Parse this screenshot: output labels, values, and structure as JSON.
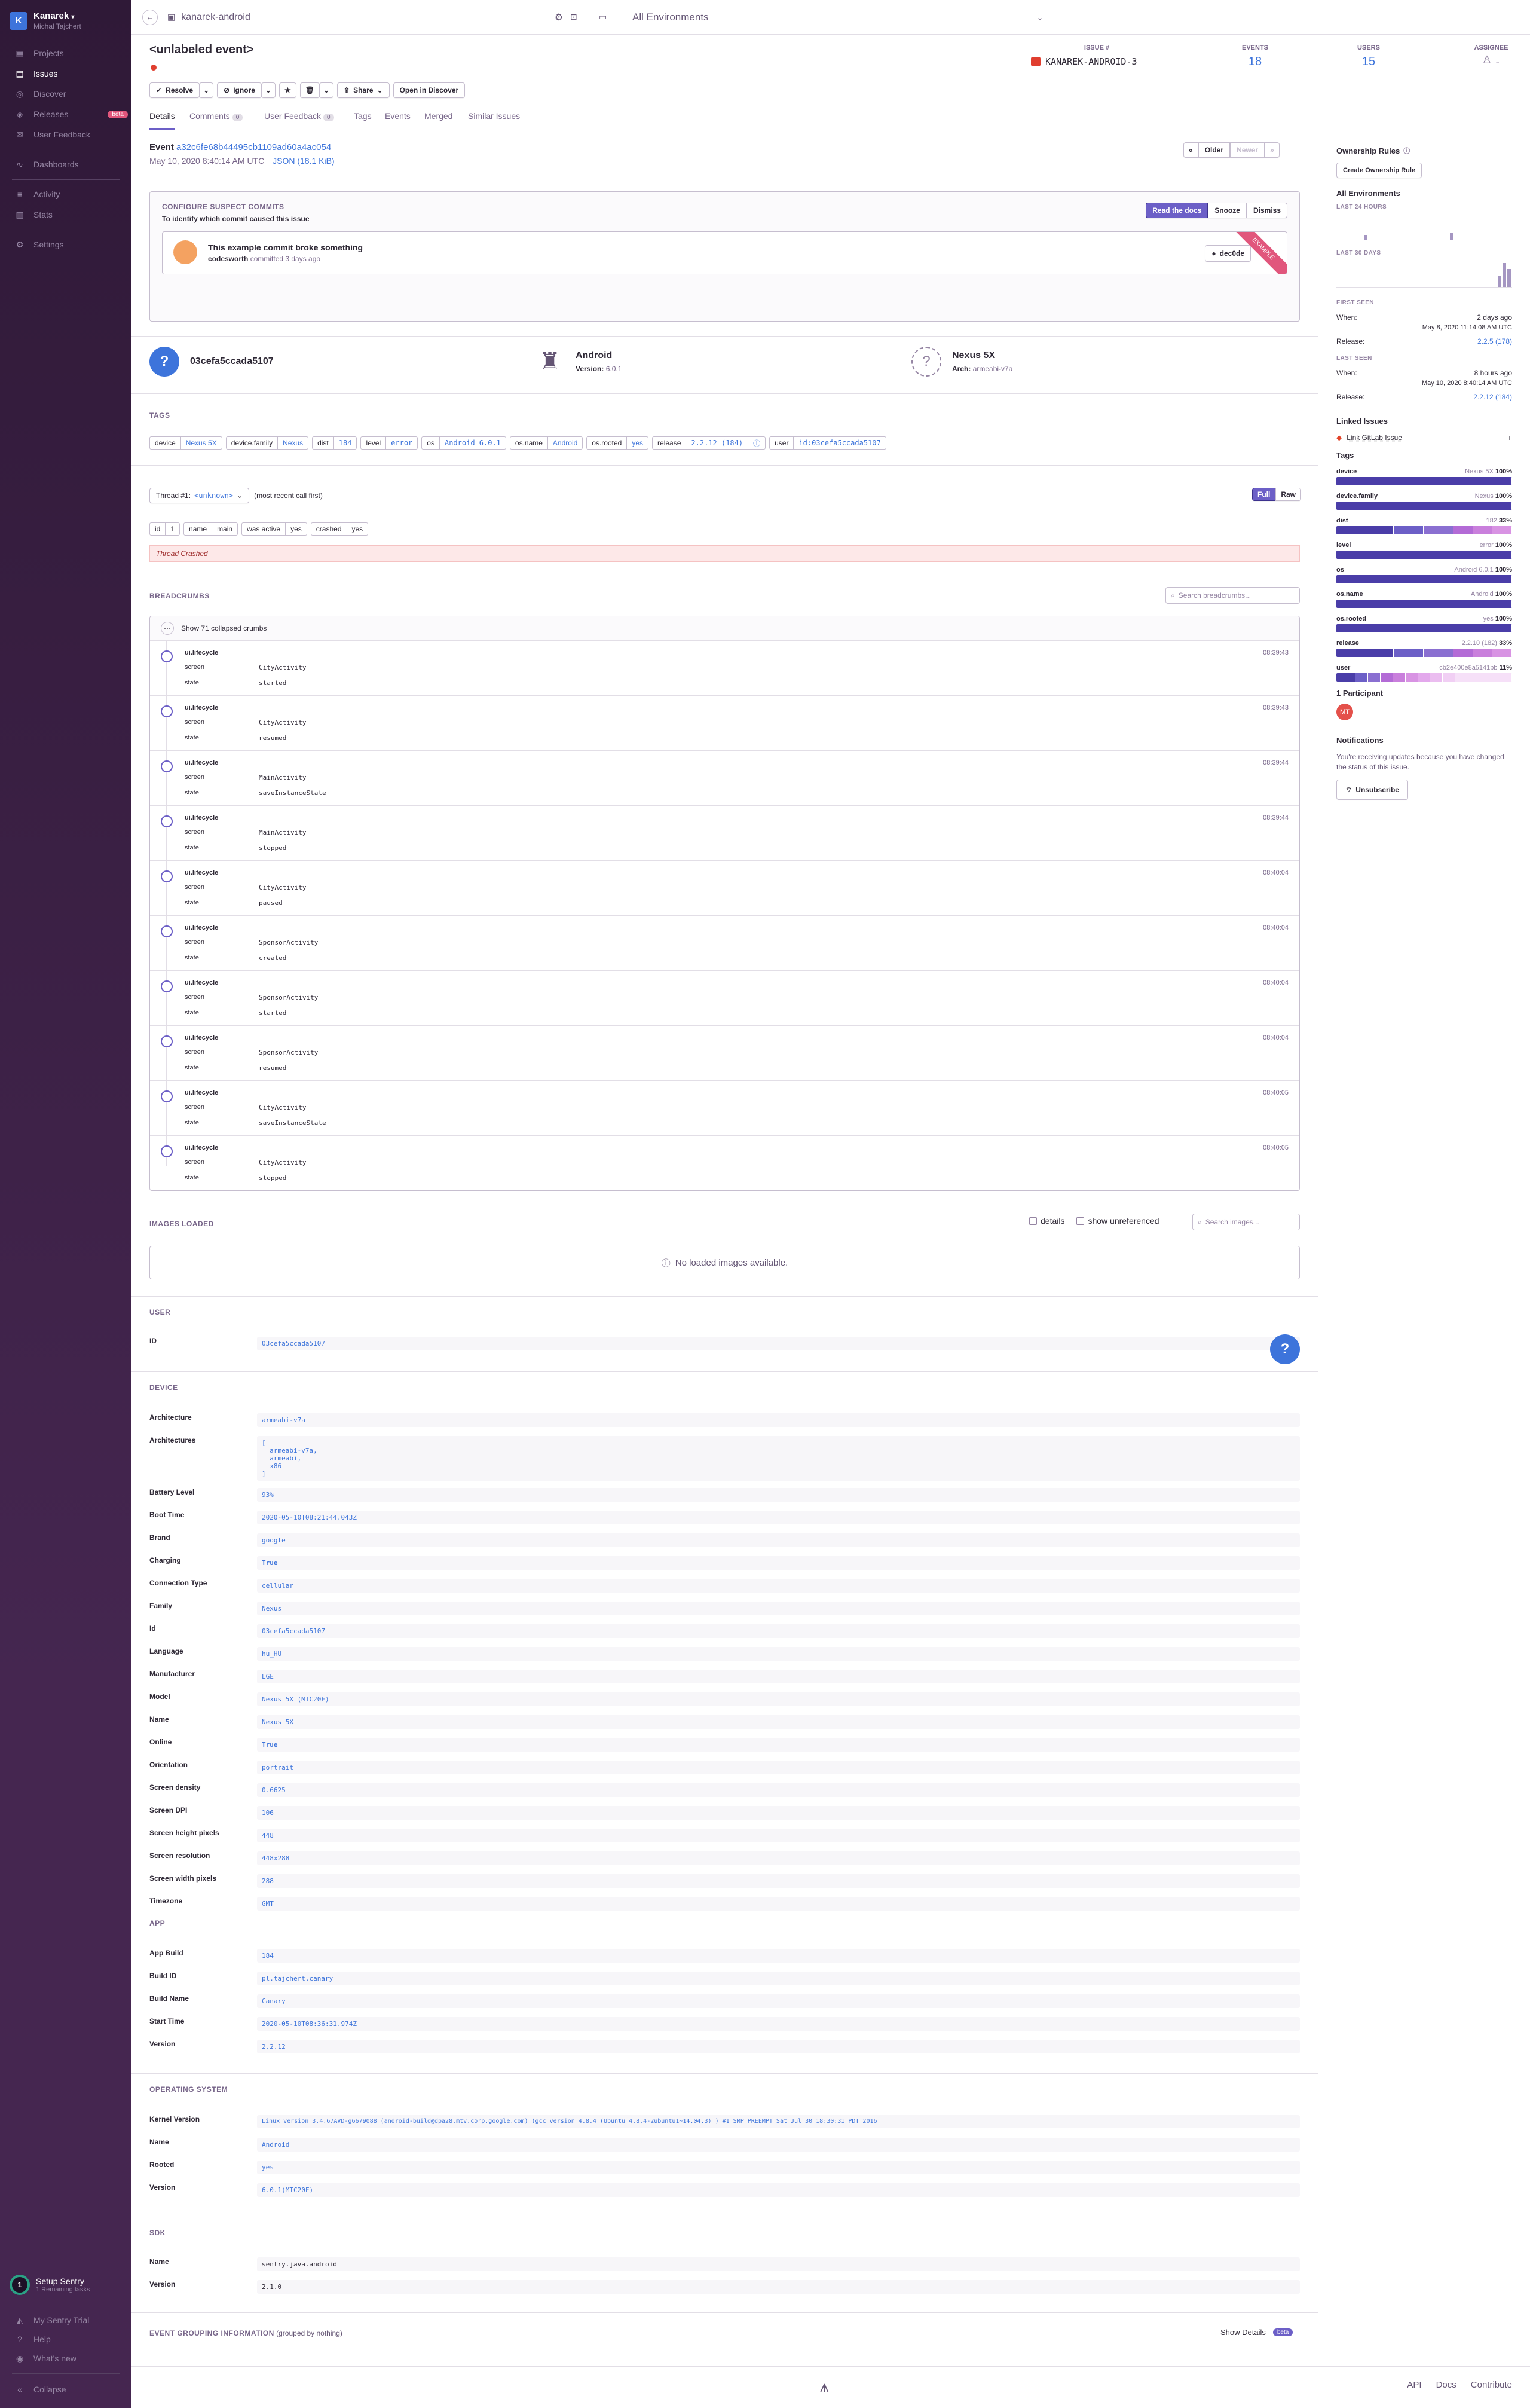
{
  "sidebar": {
    "org_initial": "K",
    "org_name": "Kanarek",
    "user_name": "Michal Tajchert",
    "items": [
      {
        "label": "Projects"
      },
      {
        "label": "Issues"
      },
      {
        "label": "Discover"
      },
      {
        "label": "Releases",
        "badge": "beta"
      },
      {
        "label": "User Feedback"
      },
      {
        "label": "Dashboards"
      },
      {
        "label": "Activity"
      },
      {
        "label": "Stats"
      },
      {
        "label": "Settings"
      }
    ],
    "setup_title": "Setup Sentry",
    "setup_sub": "1 Remaining tasks",
    "bottom": [
      {
        "label": "My Sentry Trial"
      },
      {
        "label": "Help"
      },
      {
        "label": "What's new"
      },
      {
        "label": "Collapse"
      }
    ]
  },
  "topbar": {
    "project": "kanarek-android",
    "environment": "All Environments"
  },
  "issue": {
    "title": "<unlabeled event>",
    "id_label": "ISSUE #",
    "id": "KANAREK-ANDROID-3",
    "events_label": "EVENTS",
    "events": "18",
    "users_label": "USERS",
    "users": "15",
    "assignee_label": "ASSIGNEE"
  },
  "actions": {
    "resolve": "Resolve",
    "ignore": "Ignore",
    "share": "Share",
    "open_discover": "Open in Discover"
  },
  "tabs": [
    {
      "label": "Details"
    },
    {
      "label": "Comments",
      "count": "0"
    },
    {
      "label": "User Feedback",
      "count": "0"
    },
    {
      "label": "Tags"
    },
    {
      "label": "Events"
    },
    {
      "label": "Merged"
    },
    {
      "label": "Similar Issues"
    }
  ],
  "event": {
    "label": "Event",
    "id": "a32c6fe68b44495cb1109ad60a4ac054",
    "date": "May 10, 2020 8:40:14 AM UTC",
    "json": "JSON (18.1 KiB)",
    "older": "Older",
    "newer": "Newer"
  },
  "suspect": {
    "title": "CONFIGURE SUSPECT COMMITS",
    "subtitle": "To identify which commit caused this issue",
    "read_docs": "Read the docs",
    "snooze": "Snooze",
    "dismiss": "Dismiss",
    "commit_title": "This example commit broke something",
    "commit_author": "codesworth",
    "commit_meta": "committed 3 days ago",
    "commit_hash": "dec0de",
    "ribbon": "example"
  },
  "contexts": [
    {
      "title": "03cefa5ccada5107",
      "sub_label": "",
      "sub_value": ""
    },
    {
      "title": "Android",
      "sub_label": "Version:",
      "sub_value": "6.0.1"
    },
    {
      "title": "Nexus 5X",
      "sub_label": "Arch:",
      "sub_value": "armeabi-v7a"
    }
  ],
  "tags_section": {
    "title": "TAGS",
    "items": [
      {
        "k": "device",
        "v": "Nexus 5X"
      },
      {
        "k": "device.family",
        "v": "Nexus"
      },
      {
        "k": "dist",
        "v": "184"
      },
      {
        "k": "level",
        "v": "error"
      },
      {
        "k": "os",
        "v": "Android 6.0.1"
      },
      {
        "k": "os.name",
        "v": "Android"
      },
      {
        "k": "os.rooted",
        "v": "yes"
      },
      {
        "k": "release",
        "v": "2.2.12 (184)"
      },
      {
        "k": "user",
        "v": "id:03cefa5ccada5107"
      }
    ]
  },
  "thread": {
    "selector": "Thread #1:",
    "selector_value": "<unknown>",
    "order": "(most recent call first)",
    "full": "Full",
    "raw": "Raw",
    "pills": [
      {
        "k": "id",
        "v": "1"
      },
      {
        "k": "name",
        "v": "main"
      },
      {
        "k": "was active",
        "v": "yes"
      },
      {
        "k": "crashed",
        "v": "yes"
      }
    ],
    "crashed_banner": "Thread Crashed"
  },
  "breadcrumbs": {
    "title": "BREADCRUMBS",
    "search_placeholder": "Search breadcrumbs...",
    "collapsed": "Show 71 collapsed crumbs",
    "items": [
      {
        "cat": "ui.lifecycle",
        "time": "08:39:43",
        "screen": "CityActivity",
        "state": "started"
      },
      {
        "cat": "ui.lifecycle",
        "time": "08:39:43",
        "screen": "CityActivity",
        "state": "resumed"
      },
      {
        "cat": "ui.lifecycle",
        "time": "08:39:44",
        "screen": "MainActivity",
        "state": "saveInstanceState"
      },
      {
        "cat": "ui.lifecycle",
        "time": "08:39:44",
        "screen": "MainActivity",
        "state": "stopped"
      },
      {
        "cat": "ui.lifecycle",
        "time": "08:40:04",
        "screen": "CityActivity",
        "state": "paused"
      },
      {
        "cat": "ui.lifecycle",
        "time": "08:40:04",
        "screen": "SponsorActivity",
        "state": "created"
      },
      {
        "cat": "ui.lifecycle",
        "time": "08:40:04",
        "screen": "SponsorActivity",
        "state": "started"
      },
      {
        "cat": "ui.lifecycle",
        "time": "08:40:04",
        "screen": "SponsorActivity",
        "state": "resumed"
      },
      {
        "cat": "ui.lifecycle",
        "time": "08:40:05",
        "screen": "CityActivity",
        "state": "saveInstanceState"
      },
      {
        "cat": "ui.lifecycle",
        "time": "08:40:05",
        "screen": "CityActivity",
        "state": "stopped"
      }
    ],
    "key_screen": "screen",
    "key_state": "state"
  },
  "images": {
    "title": "IMAGES LOADED",
    "details": "details",
    "show_unref": "show unreferenced",
    "search_placeholder": "Search images...",
    "empty": "No loaded images available."
  },
  "user_section": {
    "title": "USER",
    "rows": [
      {
        "k": "ID",
        "v": "03cefa5ccada5107"
      }
    ]
  },
  "device_section": {
    "title": "DEVICE",
    "rows": [
      {
        "k": "Architecture",
        "v": "armeabi-v7a"
      },
      {
        "k": "Architectures",
        "v": "[\n  armeabi-v7a,\n  armeabi,\n  x86\n]"
      },
      {
        "k": "Battery Level",
        "v": "93%"
      },
      {
        "k": "Boot Time",
        "v": "2020-05-10T08:21:44.043Z"
      },
      {
        "k": "Brand",
        "v": "google"
      },
      {
        "k": "Charging",
        "v": "True"
      },
      {
        "k": "Connection Type",
        "v": "cellular"
      },
      {
        "k": "Family",
        "v": "Nexus"
      },
      {
        "k": "Id",
        "v": "03cefa5ccada5107"
      },
      {
        "k": "Language",
        "v": "hu_HU"
      },
      {
        "k": "Manufacturer",
        "v": "LGE"
      },
      {
        "k": "Model",
        "v": "Nexus 5X (MTC20F)"
      },
      {
        "k": "Name",
        "v": "Nexus 5X"
      },
      {
        "k": "Online",
        "v": "True"
      },
      {
        "k": "Orientation",
        "v": "portrait"
      },
      {
        "k": "Screen density",
        "v": "0.6625"
      },
      {
        "k": "Screen DPI",
        "v": "106"
      },
      {
        "k": "Screen height pixels",
        "v": "448"
      },
      {
        "k": "Screen resolution",
        "v": "448x288"
      },
      {
        "k": "Screen width pixels",
        "v": "288"
      },
      {
        "k": "Timezone",
        "v": "GMT"
      }
    ]
  },
  "app_section": {
    "title": "APP",
    "rows": [
      {
        "k": "App Build",
        "v": "184"
      },
      {
        "k": "Build ID",
        "v": "pl.tajchert.canary"
      },
      {
        "k": "Build Name",
        "v": "Canary"
      },
      {
        "k": "Start Time",
        "v": "2020-05-10T08:36:31.974Z"
      },
      {
        "k": "Version",
        "v": "2.2.12"
      }
    ]
  },
  "os_section": {
    "title": "OPERATING SYSTEM",
    "rows": [
      {
        "k": "Kernel Version",
        "v": "Linux version 3.4.67AVD-g6679088 (android-build@dpa28.mtv.corp.google.com) (gcc version 4.8.4 (Ubuntu 4.8.4-2ubuntu1~14.04.3) ) #1 SMP PREEMPT Sat Jul 30 18:30:31 PDT 2016"
      },
      {
        "k": "Name",
        "v": "Android"
      },
      {
        "k": "Rooted",
        "v": "yes"
      },
      {
        "k": "Version",
        "v": "6.0.1(MTC20F)"
      }
    ]
  },
  "sdk_section": {
    "title": "SDK",
    "rows": [
      {
        "k": "Name",
        "v": "sentry.java.android"
      },
      {
        "k": "Version",
        "v": "2.1.0"
      }
    ]
  },
  "grouping": {
    "title": "EVENT GROUPING INFORMATION",
    "sub": "(grouped by nothing)",
    "show_details": "Show Details",
    "beta": "beta"
  },
  "footer": {
    "api": "API",
    "docs": "Docs",
    "contribute": "Contribute"
  },
  "right": {
    "ownership_title": "Ownership Rules",
    "create_rule": "Create Ownership Rule",
    "env_title": "All Environments",
    "last24": "LAST 24 HOURS",
    "last30": "LAST 30 DAYS",
    "first_seen_label": "FIRST SEEN",
    "first_when_label": "When:",
    "first_when": "2 days ago",
    "first_date": "May 8, 2020 11:14:08 AM UTC",
    "first_release_label": "Release:",
    "first_release": "2.2.5 (178)",
    "last_seen_label": "LAST SEEN",
    "last_when_label": "When:",
    "last_when": "8 hours ago",
    "last_date": "May 10, 2020 8:40:14 AM UTC",
    "last_release_label": "Release:",
    "last_release": "2.2.12 (184)",
    "linked_title": "Linked Issues",
    "link_gitlab": "Link GitLab Issue",
    "tags_title": "Tags",
    "tags": [
      {
        "k": "device",
        "top": "Nexus 5X",
        "pct": "100%",
        "segments": [
          1.0
        ]
      },
      {
        "k": "device.family",
        "top": "Nexus",
        "pct": "100%",
        "segments": [
          1.0
        ]
      },
      {
        "k": "dist",
        "top": "182",
        "pct": "33%",
        "segments": [
          0.33,
          0.17,
          0.17,
          0.11,
          0.11,
          0.11
        ]
      },
      {
        "k": "level",
        "top": "error",
        "pct": "100%",
        "segments": [
          1.0
        ]
      },
      {
        "k": "os",
        "top": "Android 6.0.1",
        "pct": "100%",
        "segments": [
          1.0
        ]
      },
      {
        "k": "os.name",
        "top": "Android",
        "pct": "100%",
        "segments": [
          1.0
        ]
      },
      {
        "k": "os.rooted",
        "top": "yes",
        "pct": "100%",
        "segments": [
          1.0
        ]
      },
      {
        "k": "release",
        "top": "2.2.10 (182)",
        "pct": "33%",
        "segments": [
          0.33,
          0.17,
          0.17,
          0.11,
          0.11,
          0.11
        ]
      },
      {
        "k": "user",
        "top": "cb2e400e8a5141bb",
        "pct": "11%",
        "segments": [
          0.11,
          0.07,
          0.07,
          0.07,
          0.07,
          0.07,
          0.07,
          0.07,
          0.07,
          0.33
        ]
      }
    ],
    "participants_title": "1 Participant",
    "participant_initials": "MT",
    "notifications_title": "Notifications",
    "notifications_text": "You're receiving updates because you have changed the status of this issue.",
    "unsubscribe": "Unsubscribe"
  },
  "colors": {
    "accent": "#6c5fc7",
    "sidebar": "#2f1937",
    "link": "#3d74db",
    "error": "#e03e2f",
    "crash_bg": "#fde8e8"
  }
}
